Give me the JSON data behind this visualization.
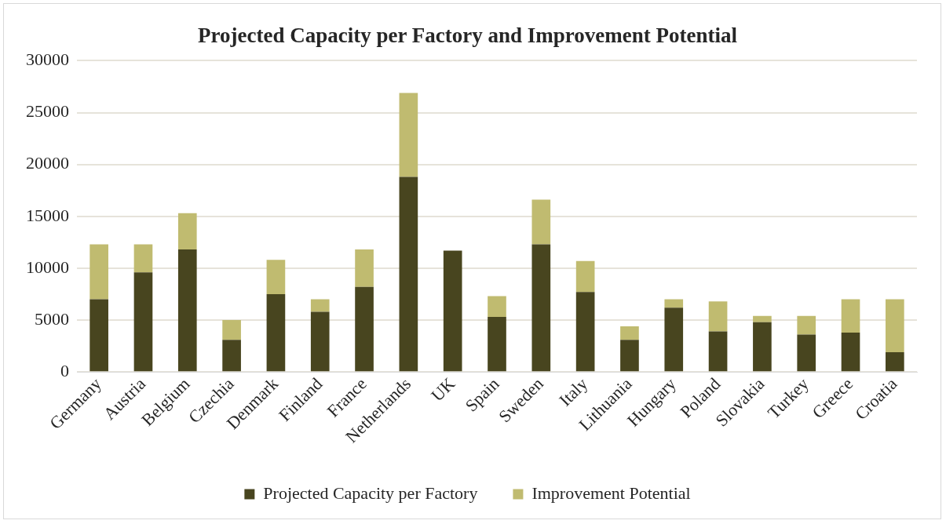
{
  "chart_data": {
    "type": "bar",
    "title": "Projected Capacity per Factory and Improvement Potential",
    "categories": [
      "Germany",
      "Austria",
      "Belgium",
      "Czechia",
      "Denmark",
      "Finland",
      "France",
      "Netherlands",
      "UK",
      "Spain",
      "Sweden",
      "Italy",
      "Lithuania",
      "Hungary",
      "Poland",
      "Slovakia",
      "Turkey",
      "Greece",
      "Croatia"
    ],
    "series": [
      {
        "name": "Projected Capacity per Factory",
        "color": "#48451f",
        "values": [
          7000,
          9600,
          11800,
          3100,
          7500,
          5800,
          8200,
          18800,
          11700,
          5300,
          12300,
          7700,
          3100,
          6200,
          3900,
          4800,
          3600,
          3800,
          1900
        ]
      },
      {
        "name": "Improvement Potential",
        "color": "#c0bb70",
        "values": [
          5300,
          2700,
          3500,
          1900,
          3300,
          1200,
          3600,
          8100,
          0,
          2000,
          4300,
          3000,
          1300,
          800,
          2900,
          600,
          1800,
          3200,
          5100
        ]
      }
    ],
    "stacked": true,
    "ylim": [
      0,
      30000
    ],
    "yticks": [
      0,
      5000,
      10000,
      15000,
      20000,
      25000,
      30000
    ],
    "grid": "y",
    "legend": "bottom"
  }
}
